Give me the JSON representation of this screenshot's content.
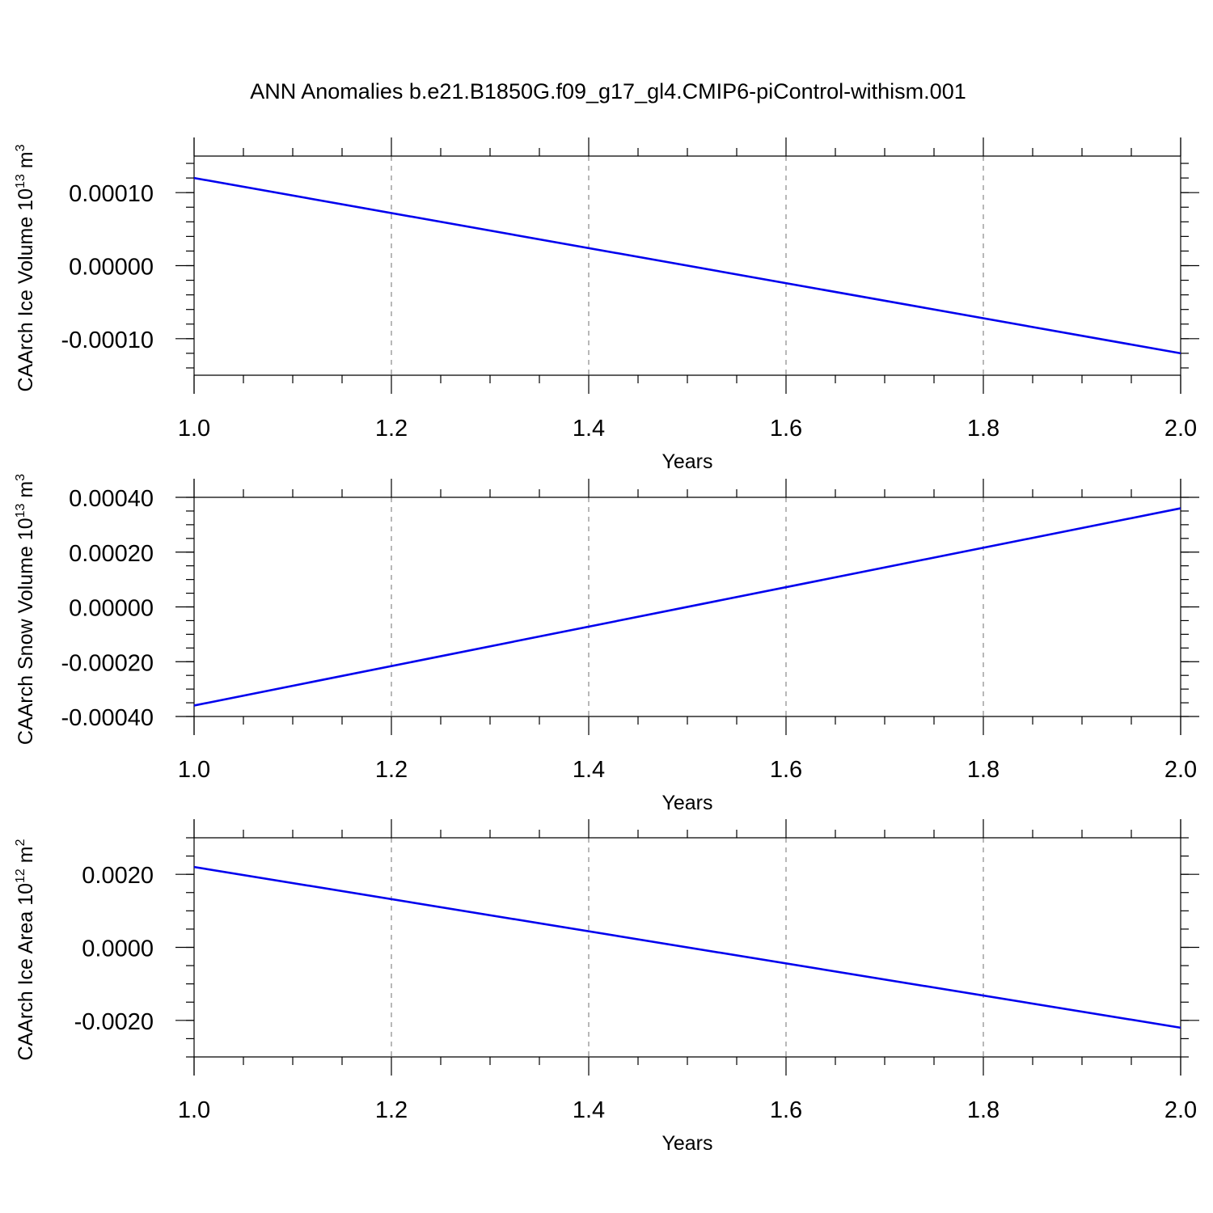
{
  "figure": {
    "title": "ANN Anomalies b.e21.B1850G.f09_g17_gl4.CMIP6-piControl-withism.001"
  },
  "chart_data": [
    {
      "type": "line",
      "xlabel": "Years",
      "ylabel": {
        "text": "CAArch Ice Volume 10",
        "exp": "13",
        "unit": " m",
        "unit_exp": "3"
      },
      "xlim": [
        1.0,
        2.0
      ],
      "ylim": [
        -0.00015,
        0.00015
      ],
      "x_ticks": [
        1.0,
        1.2,
        1.4,
        1.6,
        1.8,
        2.0
      ],
      "x_tick_labels": [
        "1.0",
        "1.2",
        "1.4",
        "1.6",
        "1.8",
        "2.0"
      ],
      "y_ticks": [
        0.0001,
        0.0,
        -0.0001
      ],
      "y_tick_labels": [
        "0.00010",
        "0.00000",
        "-0.00010"
      ],
      "y_minor_step": 2e-05,
      "grid": "vertical dashed",
      "series": [
        {
          "color": "#0000ee",
          "x": [
            1.0,
            2.0
          ],
          "y": [
            0.00012,
            -0.00012
          ]
        }
      ]
    },
    {
      "type": "line",
      "xlabel": "Years",
      "ylabel": {
        "text": "CAArch Snow Volume 10",
        "exp": "13",
        "unit": " m",
        "unit_exp": "3"
      },
      "xlim": [
        1.0,
        2.0
      ],
      "ylim": [
        -0.0004,
        0.0004
      ],
      "x_ticks": [
        1.0,
        1.2,
        1.4,
        1.6,
        1.8,
        2.0
      ],
      "x_tick_labels": [
        "1.0",
        "1.2",
        "1.4",
        "1.6",
        "1.8",
        "2.0"
      ],
      "y_ticks": [
        0.0004,
        0.0002,
        0.0,
        -0.0002,
        -0.0004
      ],
      "y_tick_labels": [
        "0.00040",
        "0.00020",
        "0.00000",
        "-0.00020",
        "-0.00040"
      ],
      "y_minor_step": 5e-05,
      "grid": "vertical dashed",
      "series": [
        {
          "color": "#0000ee",
          "x": [
            1.0,
            2.0
          ],
          "y": [
            -0.00036,
            0.00036
          ]
        }
      ]
    },
    {
      "type": "line",
      "xlabel": "Years",
      "ylabel": {
        "text": "CAArch Ice Area 10",
        "exp": "12",
        "unit": " m",
        "unit_exp": "2"
      },
      "xlim": [
        1.0,
        2.0
      ],
      "ylim": [
        -0.003,
        0.003
      ],
      "x_ticks": [
        1.0,
        1.2,
        1.4,
        1.6,
        1.8,
        2.0
      ],
      "x_tick_labels": [
        "1.0",
        "1.2",
        "1.4",
        "1.6",
        "1.8",
        "2.0"
      ],
      "y_ticks": [
        0.002,
        0.0,
        -0.002
      ],
      "y_tick_labels": [
        "0.0020",
        "0.0000",
        "-0.0020"
      ],
      "y_minor_step": 0.0005,
      "grid": "vertical dashed",
      "series": [
        {
          "color": "#0000ee",
          "x": [
            1.0,
            2.0
          ],
          "y": [
            0.0022,
            -0.0022
          ]
        }
      ]
    }
  ]
}
